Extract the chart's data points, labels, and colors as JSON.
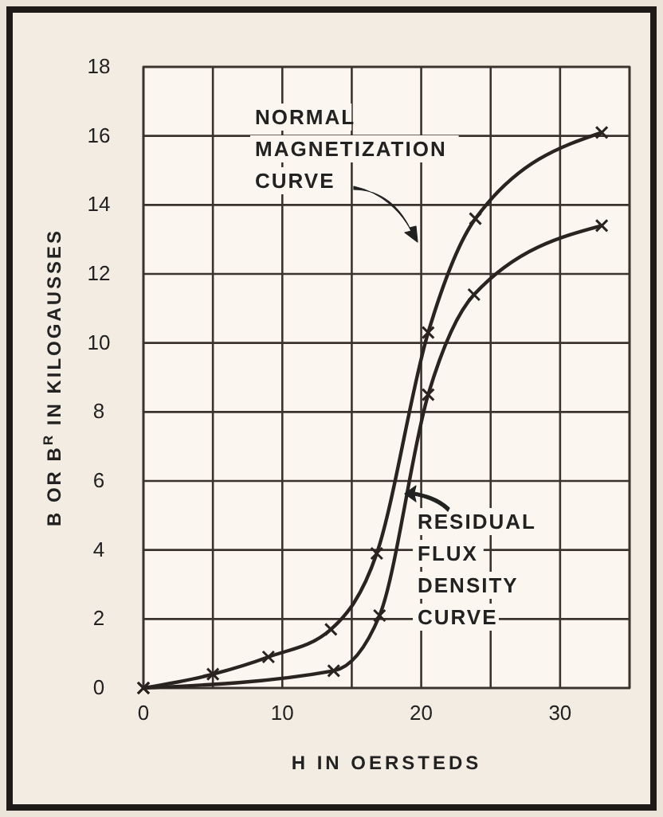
{
  "chart_data": {
    "type": "line",
    "xlabel": "H IN OERSTEDS",
    "ylabel": "B OR B$^{R}$ IN KILOGAUSSES",
    "xlim": [
      0,
      35
    ],
    "xticks": [
      0,
      {
        "value": 5,
        "label": null
      },
      10,
      {
        "value": 15,
        "label": null
      },
      20,
      {
        "value": 25,
        "label": null
      },
      30,
      {
        "value": 35,
        "label": null
      }
    ],
    "ylim": [
      0,
      18
    ],
    "yticks": [
      0,
      2,
      4,
      6,
      8,
      10,
      12,
      14,
      16,
      18
    ],
    "grid": true,
    "marker": "cross",
    "line_style": "solid",
    "series": [
      {
        "name": "NORMAL MAGNETIZATION CURVE",
        "color": "#2a2420",
        "x": [
          0,
          5,
          9,
          13.5,
          16.8,
          20.5,
          23.9,
          33
        ],
        "values": [
          0,
          0.4,
          0.9,
          1.7,
          3.9,
          10.3,
          13.6,
          16.1
        ]
      },
      {
        "name": "RESIDUAL FLUX DENSITY CURVE",
        "color": "#2a2420",
        "x": [
          0,
          13.7,
          17,
          20.5,
          23.8,
          33
        ],
        "values": [
          0,
          0.5,
          2.1,
          8.5,
          11.4,
          13.4
        ]
      }
    ]
  }
}
